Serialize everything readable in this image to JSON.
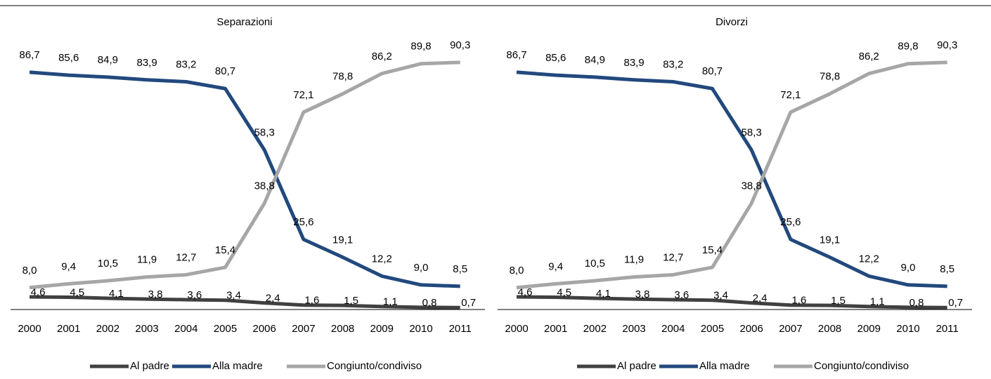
{
  "chart_data": [
    {
      "type": "line",
      "title": "Separazioni",
      "categories": [
        "2000",
        "2001",
        "2002",
        "2003",
        "2004",
        "2005",
        "2006",
        "2007",
        "2008",
        "2009",
        "2010",
        "2011"
      ],
      "series": [
        {
          "name": "Al padre",
          "color": "#404040",
          "values": [
            4.6,
            4.5,
            4.1,
            3.8,
            3.6,
            3.4,
            2.4,
            1.6,
            1.5,
            1.1,
            0.8,
            0.7
          ],
          "value_labels": [
            "4,6",
            "4,5",
            "4,1",
            "3,8",
            "3,6",
            "3,4",
            "2,4",
            "1,6",
            "1,5",
            "1,1",
            "0,8",
            "0,7"
          ]
        },
        {
          "name": "Alla madre",
          "color": "#22497d",
          "values": [
            86.7,
            85.6,
            84.9,
            83.9,
            83.2,
            80.7,
            58.3,
            25.6,
            19.1,
            12.2,
            9.0,
            8.5
          ],
          "value_labels": [
            "86,7",
            "85,6",
            "84,9",
            "83,9",
            "83,2",
            "80,7",
            "58,3",
            "25,6",
            "19,1",
            "12,2",
            "9,0",
            "8,5"
          ]
        },
        {
          "name": "Congiunto/condiviso",
          "color": "#a6a6a6",
          "values": [
            8.0,
            9.4,
            10.5,
            11.9,
            12.7,
            15.4,
            38.8,
            72.1,
            78.8,
            86.2,
            89.8,
            90.3
          ],
          "value_labels": [
            "8,0",
            "9,4",
            "10,5",
            "11,9",
            "12,7",
            "15,4",
            "38,8",
            "72,1",
            "78,8",
            "86,2",
            "89,8",
            "90,3"
          ]
        }
      ],
      "ylim": [
        0,
        100
      ],
      "legend": "bottom"
    },
    {
      "type": "line",
      "title": "Divorzi",
      "categories": [
        "2000",
        "2001",
        "2002",
        "2003",
        "2004",
        "2005",
        "2006",
        "2007",
        "2008",
        "2009",
        "2010",
        "2011"
      ],
      "series": [
        {
          "name": "Al padre",
          "color": "#404040",
          "values": [
            4.6,
            4.5,
            4.1,
            3.8,
            3.6,
            3.4,
            2.4,
            1.6,
            1.5,
            1.1,
            0.8,
            0.7
          ],
          "value_labels": [
            "4,6",
            "4,5",
            "4,1",
            "3,8",
            "3,6",
            "3,4",
            "2,4",
            "1,6",
            "1,5",
            "1,1",
            "0,8",
            "0,7"
          ]
        },
        {
          "name": "Alla madre",
          "color": "#22497d",
          "values": [
            86.7,
            85.6,
            84.9,
            83.9,
            83.2,
            80.7,
            58.3,
            25.6,
            19.1,
            12.2,
            9.0,
            8.5
          ],
          "value_labels": [
            "86,7",
            "85,6",
            "84,9",
            "83,9",
            "83,2",
            "80,7",
            "58,3",
            "25,6",
            "19,1",
            "12,2",
            "9,0",
            "8,5"
          ]
        },
        {
          "name": "Congiunto/condiviso",
          "color": "#a6a6a6",
          "values": [
            8.0,
            9.4,
            10.5,
            11.9,
            12.7,
            15.4,
            38.8,
            72.1,
            78.8,
            86.2,
            89.8,
            90.3
          ],
          "value_labels": [
            "8,0",
            "9,4",
            "10,5",
            "11,9",
            "12,7",
            "15,4",
            "38,8",
            "72,1",
            "78,8",
            "86,2",
            "89,8",
            "90,3"
          ]
        }
      ],
      "ylim": [
        0,
        100
      ],
      "legend": "bottom"
    }
  ]
}
